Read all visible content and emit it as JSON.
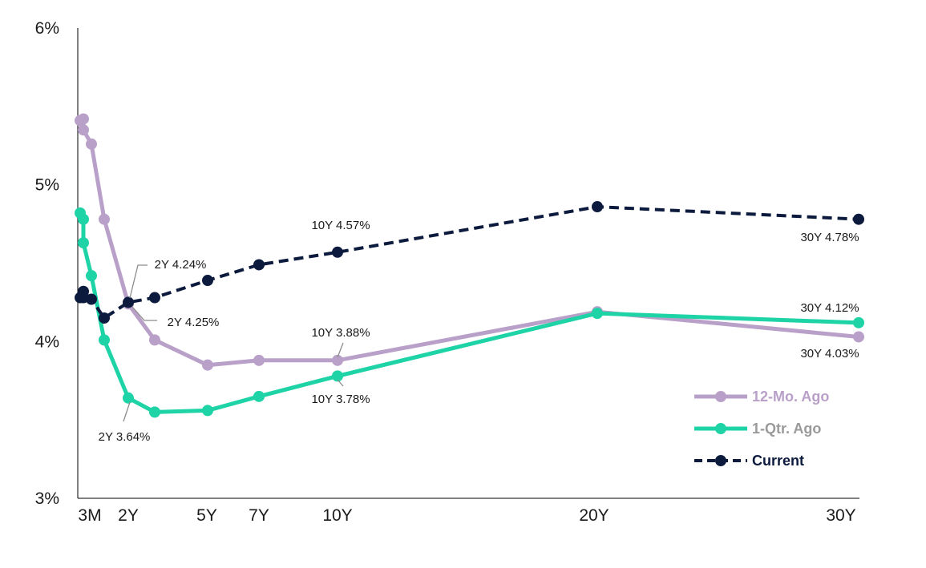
{
  "chart_data": {
    "type": "line",
    "ylim": [
      3,
      6
    ],
    "xlim": [
      0.0,
      30.0
    ],
    "y_ticks": [
      {
        "value": 3,
        "label": "3%"
      },
      {
        "value": 4,
        "label": "4%"
      },
      {
        "value": 5,
        "label": "5%"
      },
      {
        "value": 6,
        "label": "6%"
      }
    ],
    "x_ticks": [
      {
        "value": 0.25,
        "label": "3M"
      },
      {
        "value": 2,
        "label": "2Y"
      },
      {
        "value": 5,
        "label": "5Y"
      },
      {
        "value": 7,
        "label": "7Y"
      },
      {
        "value": 10,
        "label": "10Y"
      },
      {
        "value": 20,
        "label": "20Y"
      },
      {
        "value": 30,
        "label": "30Y"
      }
    ],
    "grid": false,
    "legend_position": "bottom-right",
    "series": [
      {
        "name": "12-Mo. Ago",
        "color": "#b9a0c9",
        "dashed": false,
        "x": [
          0.083,
          0.167,
          0.25,
          0.5,
          1,
          2,
          3,
          5,
          7,
          10,
          20,
          30
        ],
        "y": [
          5.41,
          5.42,
          5.35,
          5.26,
          4.78,
          4.24,
          4.01,
          3.85,
          3.88,
          3.88,
          4.19,
          4.03
        ]
      },
      {
        "name": "1-Qtr. Ago",
        "color": "#1ed3a6",
        "dashed": false,
        "x": [
          0.083,
          0.167,
          0.25,
          0.5,
          1,
          2,
          3,
          5,
          7,
          10,
          20,
          30
        ],
        "y": [
          4.82,
          4.78,
          4.63,
          4.42,
          4.01,
          3.64,
          3.55,
          3.56,
          3.65,
          3.78,
          4.18,
          4.12
        ]
      },
      {
        "name": "Current",
        "color": "#0c1a3d",
        "dashed": true,
        "x": [
          0.083,
          0.167,
          0.25,
          0.5,
          1,
          2,
          3,
          5,
          7,
          10,
          20,
          30
        ],
        "y": [
          4.28,
          4.28,
          4.32,
          4.27,
          4.15,
          4.25,
          4.28,
          4.39,
          4.49,
          4.57,
          4.86,
          4.78
        ]
      }
    ],
    "annotations": [
      {
        "text": "10Y 4.57%",
        "x": 10,
        "y": 4.57,
        "placement": "above"
      },
      {
        "text": "30Y 4.78%",
        "x": 30,
        "y": 4.78,
        "placement": "below"
      },
      {
        "text": "2Y 4.24%",
        "x": 2,
        "y": 4.24,
        "placement": "above-right"
      },
      {
        "text": "2Y 4.25%",
        "x": 2,
        "y": 4.25,
        "placement": "below-right"
      },
      {
        "text": "10Y 3.88%",
        "x": 10,
        "y": 3.88,
        "placement": "above"
      },
      {
        "text": "10Y 3.78%",
        "x": 10,
        "y": 3.78,
        "placement": "below"
      },
      {
        "text": "30Y 4.12%",
        "x": 30,
        "y": 4.12,
        "placement": "above"
      },
      {
        "text": "30Y 4.03%",
        "x": 30,
        "y": 4.03,
        "placement": "below"
      },
      {
        "text": "2Y 3.64%",
        "x": 2,
        "y": 3.64,
        "placement": "below-left"
      }
    ]
  }
}
